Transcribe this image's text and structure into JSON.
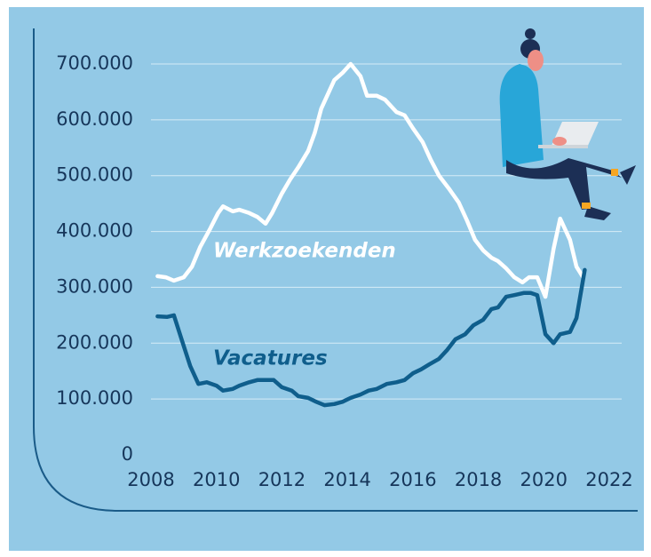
{
  "chart_data": {
    "type": "line",
    "xlim": [
      2008,
      2022
    ],
    "xticks": [
      2008,
      2010,
      2012,
      2014,
      2016,
      2018,
      2020,
      2022
    ],
    "ylim": [
      0,
      700000
    ],
    "yticks": [
      0,
      {
        "value": 100000,
        "label": "100.000"
      },
      {
        "value": 200000,
        "label": "200.000"
      },
      {
        "value": 300000,
        "label": "300.000"
      },
      {
        "value": 400000,
        "label": "400.000"
      },
      {
        "value": 500000,
        "label": "500.000"
      },
      {
        "value": 600000,
        "label": "600.000"
      },
      {
        "value": 700000,
        "label": "700.000"
      }
    ],
    "grid": true,
    "series": [
      {
        "name": "Werkzoekenden",
        "color": "#ffffff",
        "x": [
          2008.2,
          2008.45,
          2008.7,
          2009.0,
          2009.25,
          2009.5,
          2009.8,
          2010.05,
          2010.2,
          2010.5,
          2010.7,
          2011.0,
          2011.25,
          2011.5,
          2011.7,
          2012.0,
          2012.25,
          2012.5,
          2012.8,
          2013.0,
          2013.2,
          2013.6,
          2013.85,
          2014.1,
          2014.4,
          2014.6,
          2014.9,
          2015.15,
          2015.5,
          2015.75,
          2016.0,
          2016.3,
          2016.55,
          2016.8,
          2017.1,
          2017.4,
          2017.65,
          2017.9,
          2018.15,
          2018.4,
          2018.6,
          2018.85,
          2019.1,
          2019.35,
          2019.55,
          2019.8,
          2020.05,
          2020.3,
          2020.5,
          2020.8,
          2021.0,
          2021.2
        ],
        "values": [
          320000,
          318000,
          312000,
          318000,
          337000,
          372000,
          404000,
          433000,
          445000,
          436000,
          439000,
          433000,
          426000,
          414000,
          433000,
          468000,
          493000,
          515000,
          544000,
          576000,
          620000,
          671000,
          684000,
          700000,
          678000,
          643000,
          643000,
          636000,
          614000,
          608000,
          585000,
          560000,
          528000,
          500000,
          477000,
          452000,
          420000,
          385000,
          366000,
          353000,
          347000,
          334000,
          318000,
          309000,
          318000,
          318000,
          283000,
          369000,
          423000,
          385000,
          337000,
          318000
        ]
      },
      {
        "name": "Vacatures",
        "color": "#0f5e8c",
        "x": [
          2008.2,
          2008.5,
          2008.7,
          2008.9,
          2009.2,
          2009.45,
          2009.7,
          2010.0,
          2010.2,
          2010.5,
          2010.7,
          2011.0,
          2011.25,
          2011.5,
          2011.75,
          2012.0,
          2012.3,
          2012.5,
          2012.8,
          2013.05,
          2013.3,
          2013.6,
          2013.85,
          2014.1,
          2014.4,
          2014.65,
          2014.9,
          2015.2,
          2015.5,
          2015.75,
          2016.0,
          2016.25,
          2016.5,
          2016.8,
          2017.05,
          2017.3,
          2017.6,
          2017.85,
          2018.15,
          2018.4,
          2018.6,
          2018.85,
          2019.1,
          2019.4,
          2019.6,
          2019.8,
          2020.05,
          2020.3,
          2020.5,
          2020.8,
          2021.0,
          2021.25
        ],
        "values": [
          248000,
          247000,
          250000,
          213000,
          159000,
          127000,
          130000,
          124000,
          115000,
          118000,
          124000,
          130000,
          134000,
          134000,
          134000,
          121000,
          115000,
          105000,
          102000,
          95000,
          89000,
          91000,
          95000,
          102000,
          108000,
          115000,
          118000,
          127000,
          130000,
          134000,
          146000,
          153000,
          162000,
          172000,
          188000,
          207000,
          216000,
          232000,
          242000,
          261000,
          264000,
          283000,
          286000,
          290000,
          290000,
          286000,
          216000,
          200000,
          216000,
          220000,
          245000,
          331000
        ]
      }
    ]
  }
}
